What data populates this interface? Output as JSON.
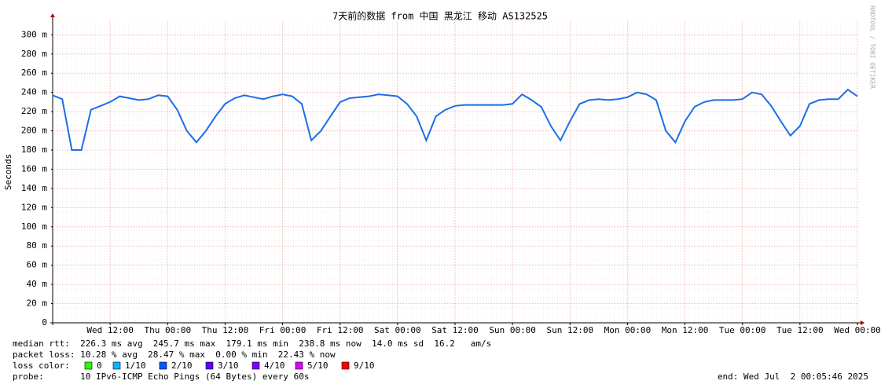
{
  "chart_data": {
    "type": "line",
    "title": "7天前的数据 from 中国 黑龙江 移动 AS132525",
    "y_label": "Seconds",
    "side_text": "RRDTOOL / TOBI OETIKER",
    "categories": [
      null,
      null,
      null,
      null,
      null,
      null,
      "Wed 12:00",
      null,
      null,
      null,
      null,
      null,
      "Thu 00:00",
      null,
      null,
      null,
      null,
      null,
      "Thu 12:00",
      null,
      null,
      null,
      null,
      null,
      "Fri 00:00",
      null,
      null,
      null,
      null,
      null,
      "Fri 12:00",
      null,
      null,
      null,
      null,
      null,
      "Sat 00:00",
      null,
      null,
      null,
      null,
      null,
      "Sat 12:00",
      null,
      null,
      null,
      null,
      null,
      "Sun 00:00",
      null,
      null,
      null,
      null,
      null,
      "Sun 12:00",
      null,
      null,
      null,
      null,
      null,
      "Mon 00:00",
      null,
      null,
      null,
      null,
      null,
      "Mon 12:00",
      null,
      null,
      null,
      null,
      null,
      "Tue 00:00",
      null,
      null,
      null,
      null,
      null,
      "Tue 12:00",
      null,
      null,
      null,
      null,
      null,
      "Wed 00:00"
    ],
    "values": [
      0.237,
      0.233,
      0.18,
      0.18,
      0.222,
      0.226,
      0.23,
      0.236,
      0.234,
      0.232,
      0.233,
      0.237,
      0.236,
      0.222,
      0.2,
      0.188,
      0.2,
      0.215,
      0.228,
      0.234,
      0.237,
      0.235,
      0.233,
      0.236,
      0.238,
      0.236,
      0.228,
      0.19,
      0.2,
      0.215,
      0.23,
      0.234,
      0.235,
      0.236,
      0.238,
      0.237,
      0.236,
      0.228,
      0.215,
      0.19,
      0.215,
      0.222,
      0.226,
      0.227,
      0.227,
      0.227,
      0.227,
      0.227,
      0.228,
      0.238,
      0.232,
      0.225,
      0.205,
      0.19,
      0.21,
      0.228,
      0.232,
      0.233,
      0.232,
      0.233,
      0.235,
      0.24,
      0.238,
      0.232,
      0.2,
      0.188,
      0.21,
      0.225,
      0.23,
      0.232,
      0.232,
      0.232,
      0.233,
      0.24,
      0.238,
      0.226,
      0.21,
      0.195,
      0.205,
      0.228,
      0.232,
      0.233,
      0.233,
      0.243,
      0.236
    ],
    "color": "#1a6fe8",
    "ylim": [
      0,
      0.315
    ],
    "yticks": [
      {
        "value": 0,
        "label": "0"
      },
      {
        "value": 0.02,
        "label": "20 m"
      },
      {
        "value": 0.04,
        "label": "40 m"
      },
      {
        "value": 0.06,
        "label": "60 m"
      },
      {
        "value": 0.08,
        "label": "80 m"
      },
      {
        "value": 0.1,
        "label": "100 m"
      },
      {
        "value": 0.12,
        "label": "120 m"
      },
      {
        "value": 0.14,
        "label": "140 m"
      },
      {
        "value": 0.16,
        "label": "160 m"
      },
      {
        "value": 0.18,
        "label": "180 m"
      },
      {
        "value": 0.2,
        "label": "200 m"
      },
      {
        "value": 0.22,
        "label": "220 m"
      },
      {
        "value": 0.24,
        "label": "240 m"
      },
      {
        "value": 0.26,
        "label": "260 m"
      },
      {
        "value": 0.28,
        "label": "280 m"
      },
      {
        "value": 0.3,
        "label": "300 m"
      }
    ],
    "grid": true,
    "median_rtt": "median rtt:  226.3 ms avg  245.7 ms max  179.1 ms min  238.8 ms now  14.0 ms sd  16.2   am/s",
    "packet_loss": "packet loss: 10.28 % avg  28.47 % max  0.00 % min  22.43 % now",
    "loss_color_label": "loss color:",
    "loss_colors": [
      {
        "name": "0",
        "color": "#26ff00"
      },
      {
        "name": "1/10",
        "color": "#00b8ff"
      },
      {
        "name": "2/10",
        "color": "#0059ff"
      },
      {
        "name": "3/10",
        "color": "#5e00ff"
      },
      {
        "name": "4/10",
        "color": "#7e00ff"
      },
      {
        "name": "5/10",
        "color": "#dd00ff"
      },
      {
        "name": "9/10",
        "color": "#ff0000"
      }
    ],
    "probe": "probe:       10 IPv6-ICMP Echo Pings (64 Bytes) every 60s",
    "end": "end: Wed Jul  2 00:05:46 2025"
  }
}
